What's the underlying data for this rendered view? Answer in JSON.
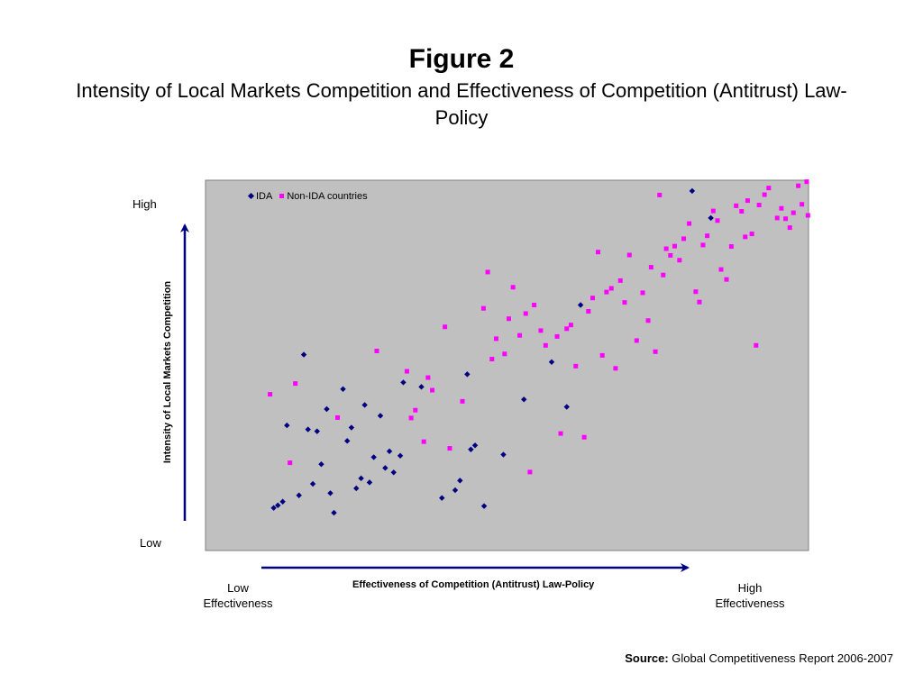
{
  "title": "Figure 2",
  "subtitle": "Intensity of Local Markets Competition and Effectiveness of Competition (Antitrust) Law- Policy",
  "source": {
    "label": "Source:",
    "text": "Global Competitiveness Report 2006-2007"
  },
  "colors": {
    "ida": "#000080",
    "non_ida": "#ff00ff",
    "plot_bg": "#c0c0c0",
    "arrow": "#000080"
  },
  "chart_data": {
    "type": "scatter",
    "xlabel": "Effectiveness of Competition (Antitrust) Law-Policy",
    "ylabel": "Intensity of Local Markets Competition",
    "y_axis_ends": {
      "high": "High",
      "low": "Low"
    },
    "x_axis_ends": {
      "low": "Low Effectiveness",
      "high": "High Effectiveness"
    },
    "legend": {
      "position": "top-left",
      "entries": [
        "IDA",
        "Non-IDA countries"
      ]
    },
    "grid": false,
    "xlim": [
      0,
      100
    ],
    "ylim": [
      0,
      100
    ],
    "series": [
      {
        "name": "IDA",
        "marker": "diamond",
        "points": [
          [
            11.3,
            11.5
          ],
          [
            12,
            12.2
          ],
          [
            12.8,
            13.2
          ],
          [
            13.5,
            33.8
          ],
          [
            15.5,
            14.9
          ],
          [
            16.3,
            52.9
          ],
          [
            17,
            32.7
          ],
          [
            17.8,
            18
          ],
          [
            18.5,
            32.2
          ],
          [
            19.2,
            23.3
          ],
          [
            20.1,
            38.2
          ],
          [
            20.7,
            15.5
          ],
          [
            21.3,
            10.2
          ],
          [
            22.8,
            43.6
          ],
          [
            23.5,
            29.6
          ],
          [
            24.2,
            33.2
          ],
          [
            25,
            16.8
          ],
          [
            25.8,
            19.5
          ],
          [
            26.4,
            39.3
          ],
          [
            27.2,
            18.4
          ],
          [
            27.9,
            25.2
          ],
          [
            29,
            36.4
          ],
          [
            29.8,
            22.3
          ],
          [
            30.5,
            26.8
          ],
          [
            31.2,
            21.1
          ],
          [
            32.3,
            25.6
          ],
          [
            32.8,
            45.4
          ],
          [
            35.8,
            44.2
          ],
          [
            39.2,
            14.2
          ],
          [
            41.4,
            16.3
          ],
          [
            42.2,
            18.9
          ],
          [
            43.4,
            47.6
          ],
          [
            44,
            27.3
          ],
          [
            44.7,
            28.4
          ],
          [
            46.2,
            12
          ],
          [
            49.4,
            25.9
          ],
          [
            52.8,
            40.8
          ],
          [
            57.4,
            50.9
          ],
          [
            59.9,
            38.8
          ],
          [
            62.2,
            66.3
          ],
          [
            80.7,
            97.1
          ],
          [
            83.8,
            89.8
          ]
        ]
      },
      {
        "name": "Non-IDA countries",
        "marker": "square",
        "points": [
          [
            10.7,
            42.2
          ],
          [
            14,
            23.7
          ],
          [
            14.9,
            45.1
          ],
          [
            21.9,
            35.9
          ],
          [
            28.4,
            53.9
          ],
          [
            33.4,
            48.4
          ],
          [
            34.1,
            35.8
          ],
          [
            34.8,
            37.9
          ],
          [
            36.2,
            29.4
          ],
          [
            36.9,
            46.7
          ],
          [
            37.6,
            43.3
          ],
          [
            39.7,
            60.4
          ],
          [
            40.5,
            27.6
          ],
          [
            42.6,
            40.3
          ],
          [
            46.1,
            65.4
          ],
          [
            46.8,
            75.2
          ],
          [
            47.5,
            51.7
          ],
          [
            48.2,
            57.2
          ],
          [
            49.6,
            53.1
          ],
          [
            50.3,
            62.6
          ],
          [
            51,
            71.1
          ],
          [
            52.1,
            58.1
          ],
          [
            53.1,
            64
          ],
          [
            53.8,
            21.2
          ],
          [
            54.5,
            66.3
          ],
          [
            55.6,
            59.4
          ],
          [
            56.4,
            55.4
          ],
          [
            58.3,
            57.8
          ],
          [
            58.9,
            31.6
          ],
          [
            59.9,
            59.9
          ],
          [
            60.6,
            60.9
          ],
          [
            61.4,
            49.8
          ],
          [
            62.8,
            30.6
          ],
          [
            63.5,
            64.6
          ],
          [
            64.2,
            68.2
          ],
          [
            65.1,
            80.6
          ],
          [
            65.8,
            52.7
          ],
          [
            66.5,
            69.8
          ],
          [
            67.3,
            70.8
          ],
          [
            68,
            49.2
          ],
          [
            68.8,
            72.9
          ],
          [
            69.5,
            67
          ],
          [
            70.3,
            79.8
          ],
          [
            71.5,
            56.7
          ],
          [
            72.5,
            69.6
          ],
          [
            73.4,
            62.1
          ],
          [
            73.9,
            76.5
          ],
          [
            74.6,
            53.7
          ],
          [
            75.3,
            96
          ],
          [
            75.9,
            74.4
          ],
          [
            76.4,
            81.5
          ],
          [
            77.1,
            79.7
          ],
          [
            77.8,
            82.2
          ],
          [
            78.6,
            78.4
          ],
          [
            79.3,
            84.2
          ],
          [
            80.2,
            88.3
          ],
          [
            81.3,
            69.9
          ],
          [
            81.9,
            67.1
          ],
          [
            82.5,
            82.5
          ],
          [
            83.2,
            85
          ],
          [
            84.2,
            91.7
          ],
          [
            84.9,
            89.1
          ],
          [
            85.5,
            75.9
          ],
          [
            86.4,
            73.2
          ],
          [
            87.2,
            82.1
          ],
          [
            88,
            93.1
          ],
          [
            88.9,
            91.6
          ],
          [
            89.5,
            84.7
          ],
          [
            89.9,
            94.5
          ],
          [
            90.6,
            85.5
          ],
          [
            91.3,
            55.4
          ],
          [
            91.8,
            93.3
          ],
          [
            92.7,
            96.1
          ],
          [
            93.4,
            97.9
          ],
          [
            94.8,
            89.8
          ],
          [
            95.5,
            92.4
          ],
          [
            96.2,
            89.6
          ],
          [
            96.9,
            87.2
          ],
          [
            97.5,
            91.2
          ],
          [
            98.3,
            98.5
          ],
          [
            98.9,
            93.5
          ],
          [
            99.7,
            99.6
          ],
          [
            99.9,
            90.5
          ]
        ]
      }
    ]
  }
}
